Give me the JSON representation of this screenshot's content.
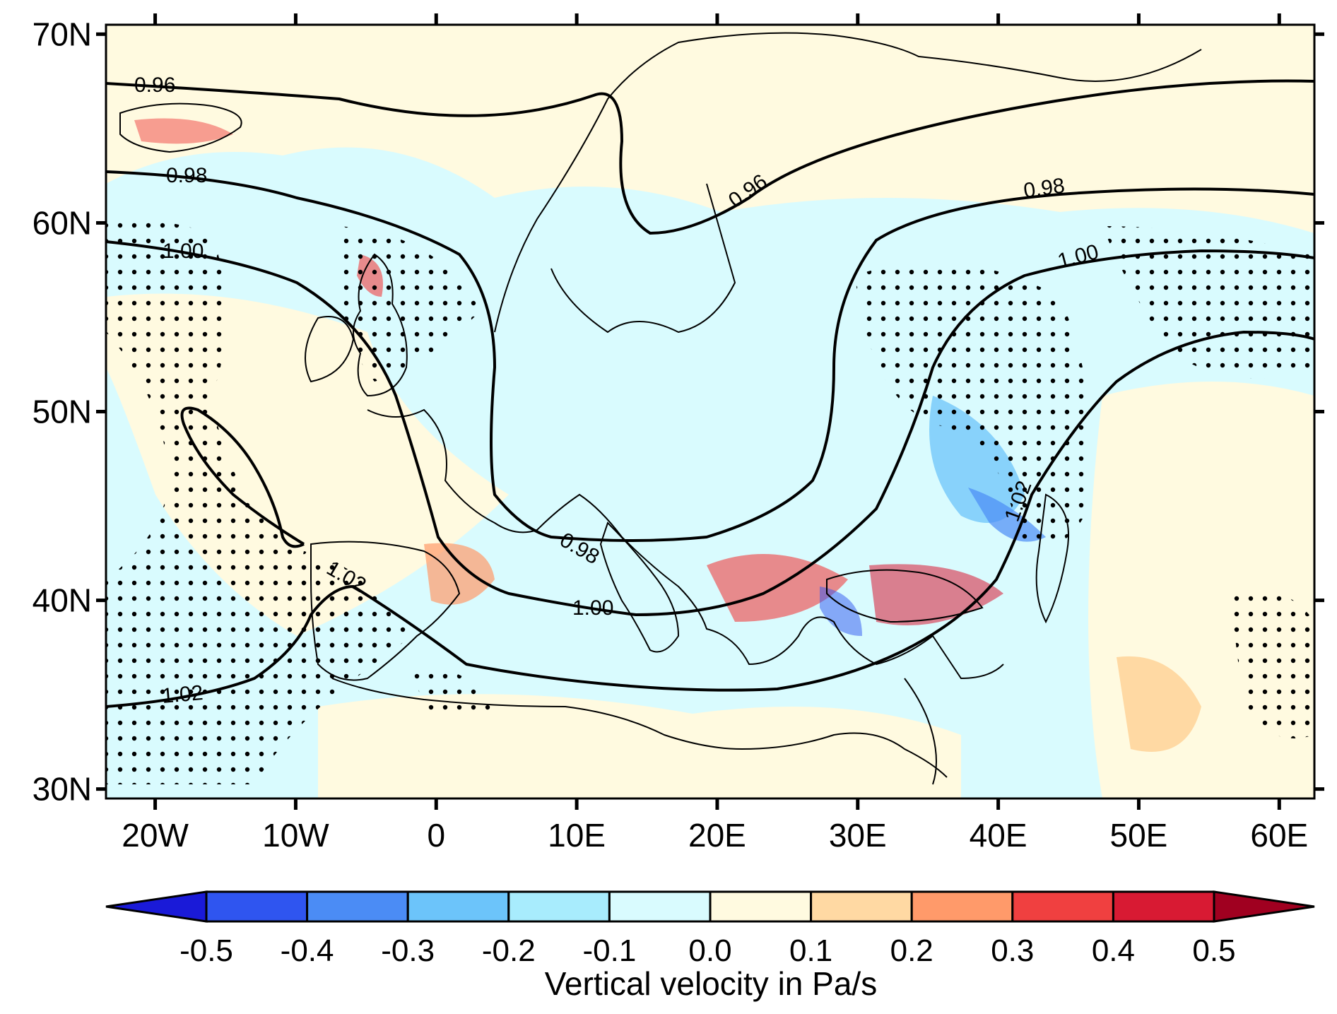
{
  "map": {
    "region": "Europe / Mediterranean",
    "lat_labels": [
      "70N",
      "60N",
      "50N",
      "40N",
      "30N"
    ],
    "lon_labels": [
      "20W",
      "10W",
      "0",
      "10E",
      "20E",
      "30E",
      "40E",
      "50E",
      "60E"
    ],
    "lat_values": [
      70,
      60,
      50,
      40,
      30
    ],
    "lon_values": [
      -20,
      -10,
      0,
      10,
      20,
      30,
      40,
      50,
      60
    ],
    "extent": {
      "lon": [
        -23.5,
        62.5
      ],
      "lat": [
        29.5,
        70.5
      ]
    },
    "field": "Vertical velocity",
    "contour_field_labels": {
      "c096": "0.96",
      "c098": "0.98",
      "c100": "1.00",
      "c102": "1.02"
    },
    "stippling": true
  },
  "colorbar": {
    "title": "Vertical velocity in Pa/s",
    "labels": [
      "-0.5",
      "-0.4",
      "-0.3",
      "-0.2",
      "-0.1",
      "0.0",
      "0.1",
      "0.2",
      "0.3",
      "0.4",
      "0.5"
    ],
    "colors": [
      "#1a1ad8",
      "#2f55f0",
      "#4b8cf5",
      "#6cc4fa",
      "#a8ecfd",
      "#d9fbfe",
      "#fffae0",
      "#ffd9a3",
      "#ff9a6a",
      "#f04040",
      "#d81a33",
      "#a00020"
    ]
  }
}
